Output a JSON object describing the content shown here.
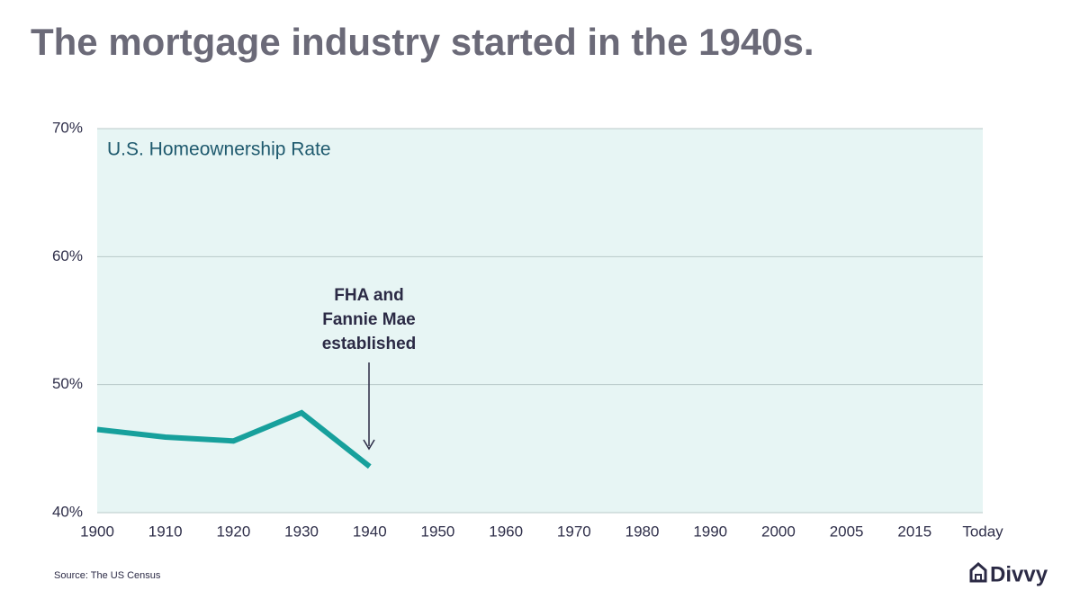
{
  "chart_data": {
    "type": "line",
    "title": "The mortgage industry started in the 1940s.",
    "subtitle": "U.S. Homeownership Rate",
    "annotation": [
      "FHA and",
      "Fannie Mae",
      "established"
    ],
    "source": "Source: The US Census",
    "logo": "Divvy",
    "categories": [
      "1900",
      "1910",
      "1920",
      "1930",
      "1940",
      "1950",
      "1960",
      "1970",
      "1980",
      "1990",
      "2000",
      "2005",
      "2015",
      "Today"
    ],
    "series": [
      {
        "name": "U.S. Homeownership Rate",
        "color": "#17a09c",
        "values": [
          46.5,
          45.9,
          45.6,
          47.8,
          43.6,
          null,
          null,
          null,
          null,
          null,
          null,
          null,
          null,
          null
        ]
      }
    ],
    "ylim": [
      40,
      70
    ],
    "yticks": [
      {
        "value": 40,
        "label": "40%"
      },
      {
        "value": 50,
        "label": "50%"
      },
      {
        "value": 60,
        "label": "60%"
      },
      {
        "value": 70,
        "label": "70%"
      }
    ],
    "grid": true,
    "plot_background": "#e7f5f4"
  }
}
